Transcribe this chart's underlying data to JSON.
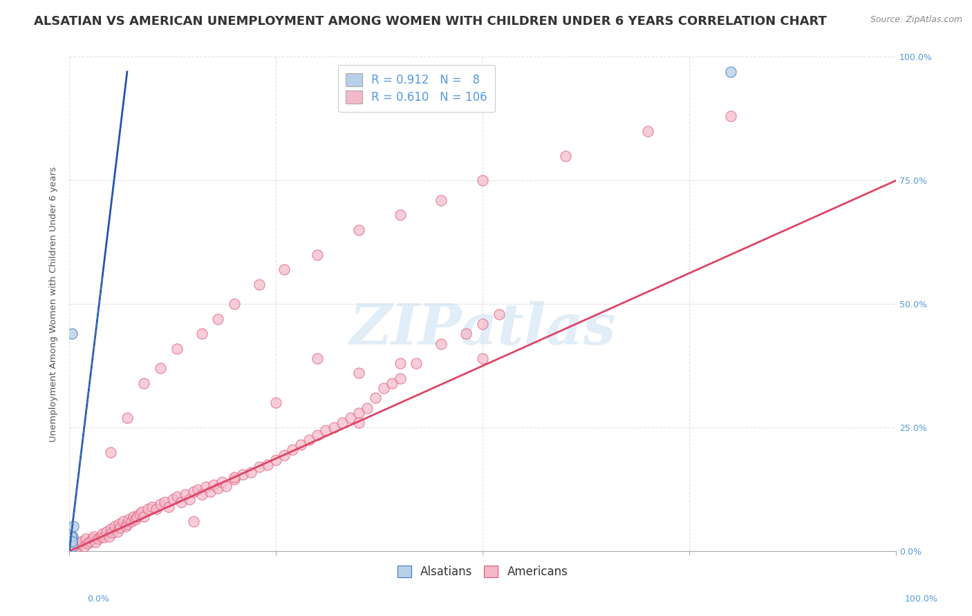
{
  "title": "ALSATIAN VS AMERICAN UNEMPLOYMENT AMONG WOMEN WITH CHILDREN UNDER 6 YEARS CORRELATION CHART",
  "source": "Source: ZipAtlas.com",
  "ylabel": "Unemployment Among Women with Children Under 6 years",
  "watermark": "ZIPatlas",
  "legend_blue_r": "0.912",
  "legend_blue_n": "8",
  "legend_pink_r": "0.610",
  "legend_pink_n": "106",
  "blue_fill_color": "#b8d0e8",
  "pink_fill_color": "#f5b8c8",
  "blue_edge_color": "#4477bb",
  "pink_edge_color": "#dd5577",
  "blue_line_color": "#2255aa",
  "pink_line_color": "#dd4466",
  "axis_tick_color": "#5599dd",
  "left_tick_color": "#bbbbbb",
  "title_color": "#333333",
  "source_color": "#888888",
  "grid_color": "#dddddd",
  "background_color": "#ffffff",
  "watermark_color": "#c5ddf0",
  "blue_scatter_x": [
    0.003,
    0.004,
    0.005,
    0.003,
    0.004,
    0.002,
    0.003,
    0.8
  ],
  "blue_scatter_y": [
    0.44,
    0.03,
    0.05,
    0.02,
    0.01,
    0.03,
    0.02,
    0.97
  ],
  "pink_scatter_x": [
    0.005,
    0.01,
    0.012,
    0.015,
    0.018,
    0.02,
    0.022,
    0.025,
    0.028,
    0.03,
    0.032,
    0.035,
    0.038,
    0.04,
    0.042,
    0.045,
    0.048,
    0.05,
    0.052,
    0.055,
    0.058,
    0.06,
    0.062,
    0.065,
    0.068,
    0.07,
    0.072,
    0.075,
    0.078,
    0.08,
    0.082,
    0.085,
    0.088,
    0.09,
    0.095,
    0.1,
    0.105,
    0.11,
    0.115,
    0.12,
    0.125,
    0.13,
    0.135,
    0.14,
    0.145,
    0.15,
    0.155,
    0.16,
    0.165,
    0.17,
    0.175,
    0.18,
    0.185,
    0.19,
    0.2,
    0.21,
    0.22,
    0.23,
    0.24,
    0.25,
    0.26,
    0.27,
    0.28,
    0.29,
    0.3,
    0.31,
    0.32,
    0.33,
    0.34,
    0.35,
    0.36,
    0.37,
    0.38,
    0.39,
    0.4,
    0.42,
    0.45,
    0.48,
    0.5,
    0.52,
    0.05,
    0.07,
    0.09,
    0.11,
    0.13,
    0.16,
    0.18,
    0.2,
    0.23,
    0.26,
    0.3,
    0.35,
    0.4,
    0.45,
    0.5,
    0.6,
    0.7,
    0.8,
    0.25,
    0.35,
    0.15,
    0.2,
    0.3,
    0.4,
    0.5,
    0.35
  ],
  "pink_scatter_y": [
    0.005,
    0.01,
    0.015,
    0.02,
    0.01,
    0.025,
    0.015,
    0.02,
    0.025,
    0.03,
    0.018,
    0.025,
    0.03,
    0.035,
    0.028,
    0.04,
    0.03,
    0.045,
    0.038,
    0.05,
    0.04,
    0.055,
    0.048,
    0.06,
    0.05,
    0.055,
    0.065,
    0.06,
    0.07,
    0.065,
    0.07,
    0.075,
    0.08,
    0.07,
    0.085,
    0.09,
    0.085,
    0.095,
    0.1,
    0.09,
    0.105,
    0.11,
    0.1,
    0.115,
    0.105,
    0.12,
    0.125,
    0.115,
    0.13,
    0.12,
    0.135,
    0.128,
    0.14,
    0.132,
    0.145,
    0.155,
    0.16,
    0.17,
    0.175,
    0.185,
    0.195,
    0.205,
    0.215,
    0.225,
    0.235,
    0.245,
    0.25,
    0.26,
    0.27,
    0.28,
    0.29,
    0.31,
    0.33,
    0.34,
    0.35,
    0.38,
    0.42,
    0.44,
    0.46,
    0.48,
    0.2,
    0.27,
    0.34,
    0.37,
    0.41,
    0.44,
    0.47,
    0.5,
    0.54,
    0.57,
    0.6,
    0.65,
    0.68,
    0.71,
    0.75,
    0.8,
    0.85,
    0.88,
    0.3,
    0.36,
    0.06,
    0.15,
    0.39,
    0.38,
    0.39,
    0.26
  ],
  "xlim": [
    0.0,
    1.0
  ],
  "ylim": [
    0.0,
    1.0
  ],
  "title_fontsize": 13,
  "source_fontsize": 9,
  "axis_fontsize": 9.5,
  "tick_fontsize": 9,
  "legend_fontsize": 12,
  "watermark_fontsize": 60
}
